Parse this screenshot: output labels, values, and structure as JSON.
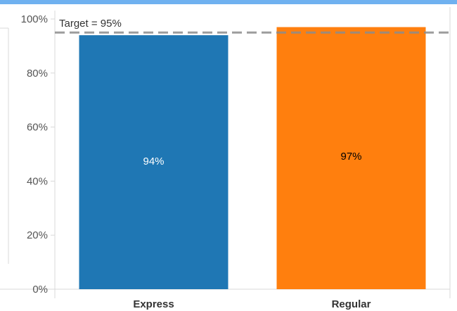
{
  "colors": {
    "top_strip": "#6fb1f0",
    "frame": "#d9d9d9",
    "gridline": "#e8e8e8",
    "reference_line": "#8c8c8c"
  },
  "chart_data": {
    "type": "bar",
    "categories": [
      "Express",
      "Regular"
    ],
    "values": [
      94,
      97
    ],
    "value_labels": [
      "94%",
      "97%"
    ],
    "bar_colors": [
      "#1f77b4",
      "#ff7f0e"
    ],
    "label_colors": [
      "#ffffff",
      "#000000"
    ],
    "yticks": [
      0,
      20,
      40,
      60,
      80,
      100
    ],
    "ytick_labels": [
      "0%",
      "20%",
      "40%",
      "60%",
      "80%",
      "100%"
    ],
    "ylim": [
      0,
      100
    ],
    "grid": false,
    "reference_line": {
      "value": 95,
      "label": "Target = 95%",
      "style": "dashed"
    }
  }
}
